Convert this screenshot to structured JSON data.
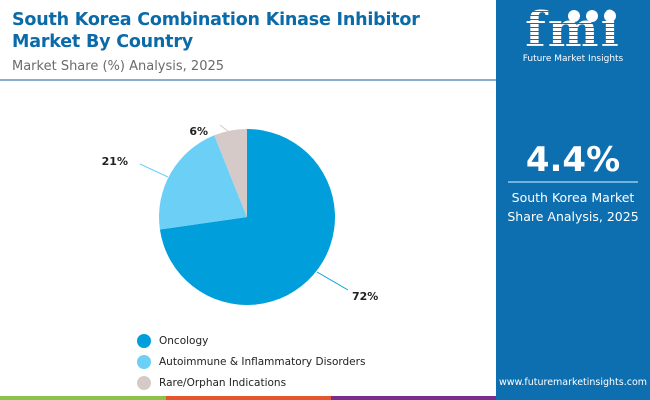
{
  "header": {
    "title": "South Korea Combination Kinase Inhibitor Market By Country",
    "subtitle": "Market Share (%) Analysis, 2025"
  },
  "sidebar": {
    "logo_text": "fmi",
    "logo_subtext": "Future Market Insights",
    "stat_value": "4.4%",
    "stat_label_line1": "South Korea Market",
    "stat_label_line2": "Share Analysis, 2025",
    "url": "www.futuremarketinsights.com"
  },
  "colors": {
    "brand_blue": "#0d6fb0",
    "title_blue": "#0b6aa8",
    "bottom_bar": [
      "#8bc34a",
      "#e4572e",
      "#7b2d8e",
      "#0d6fb0"
    ]
  },
  "chart_data": {
    "type": "pie",
    "title": "South Korea Combination Kinase Inhibitor Market By Country",
    "subtitle": "Market Share (%) Analysis, 2025",
    "start_angle_deg": 0,
    "direction": "clockwise",
    "legend_position": "bottom-left",
    "slices": [
      {
        "label": "Oncology",
        "value": 72,
        "display": "72%",
        "color": "#009fdb"
      },
      {
        "label": "Autoimmune & Inflammatory Disorders",
        "value": 21,
        "display": "21%",
        "color": "#6ccff6"
      },
      {
        "label": "Rare/Orphan Indications",
        "value": 6,
        "display": "6%",
        "color": "#d6cac8"
      }
    ]
  }
}
